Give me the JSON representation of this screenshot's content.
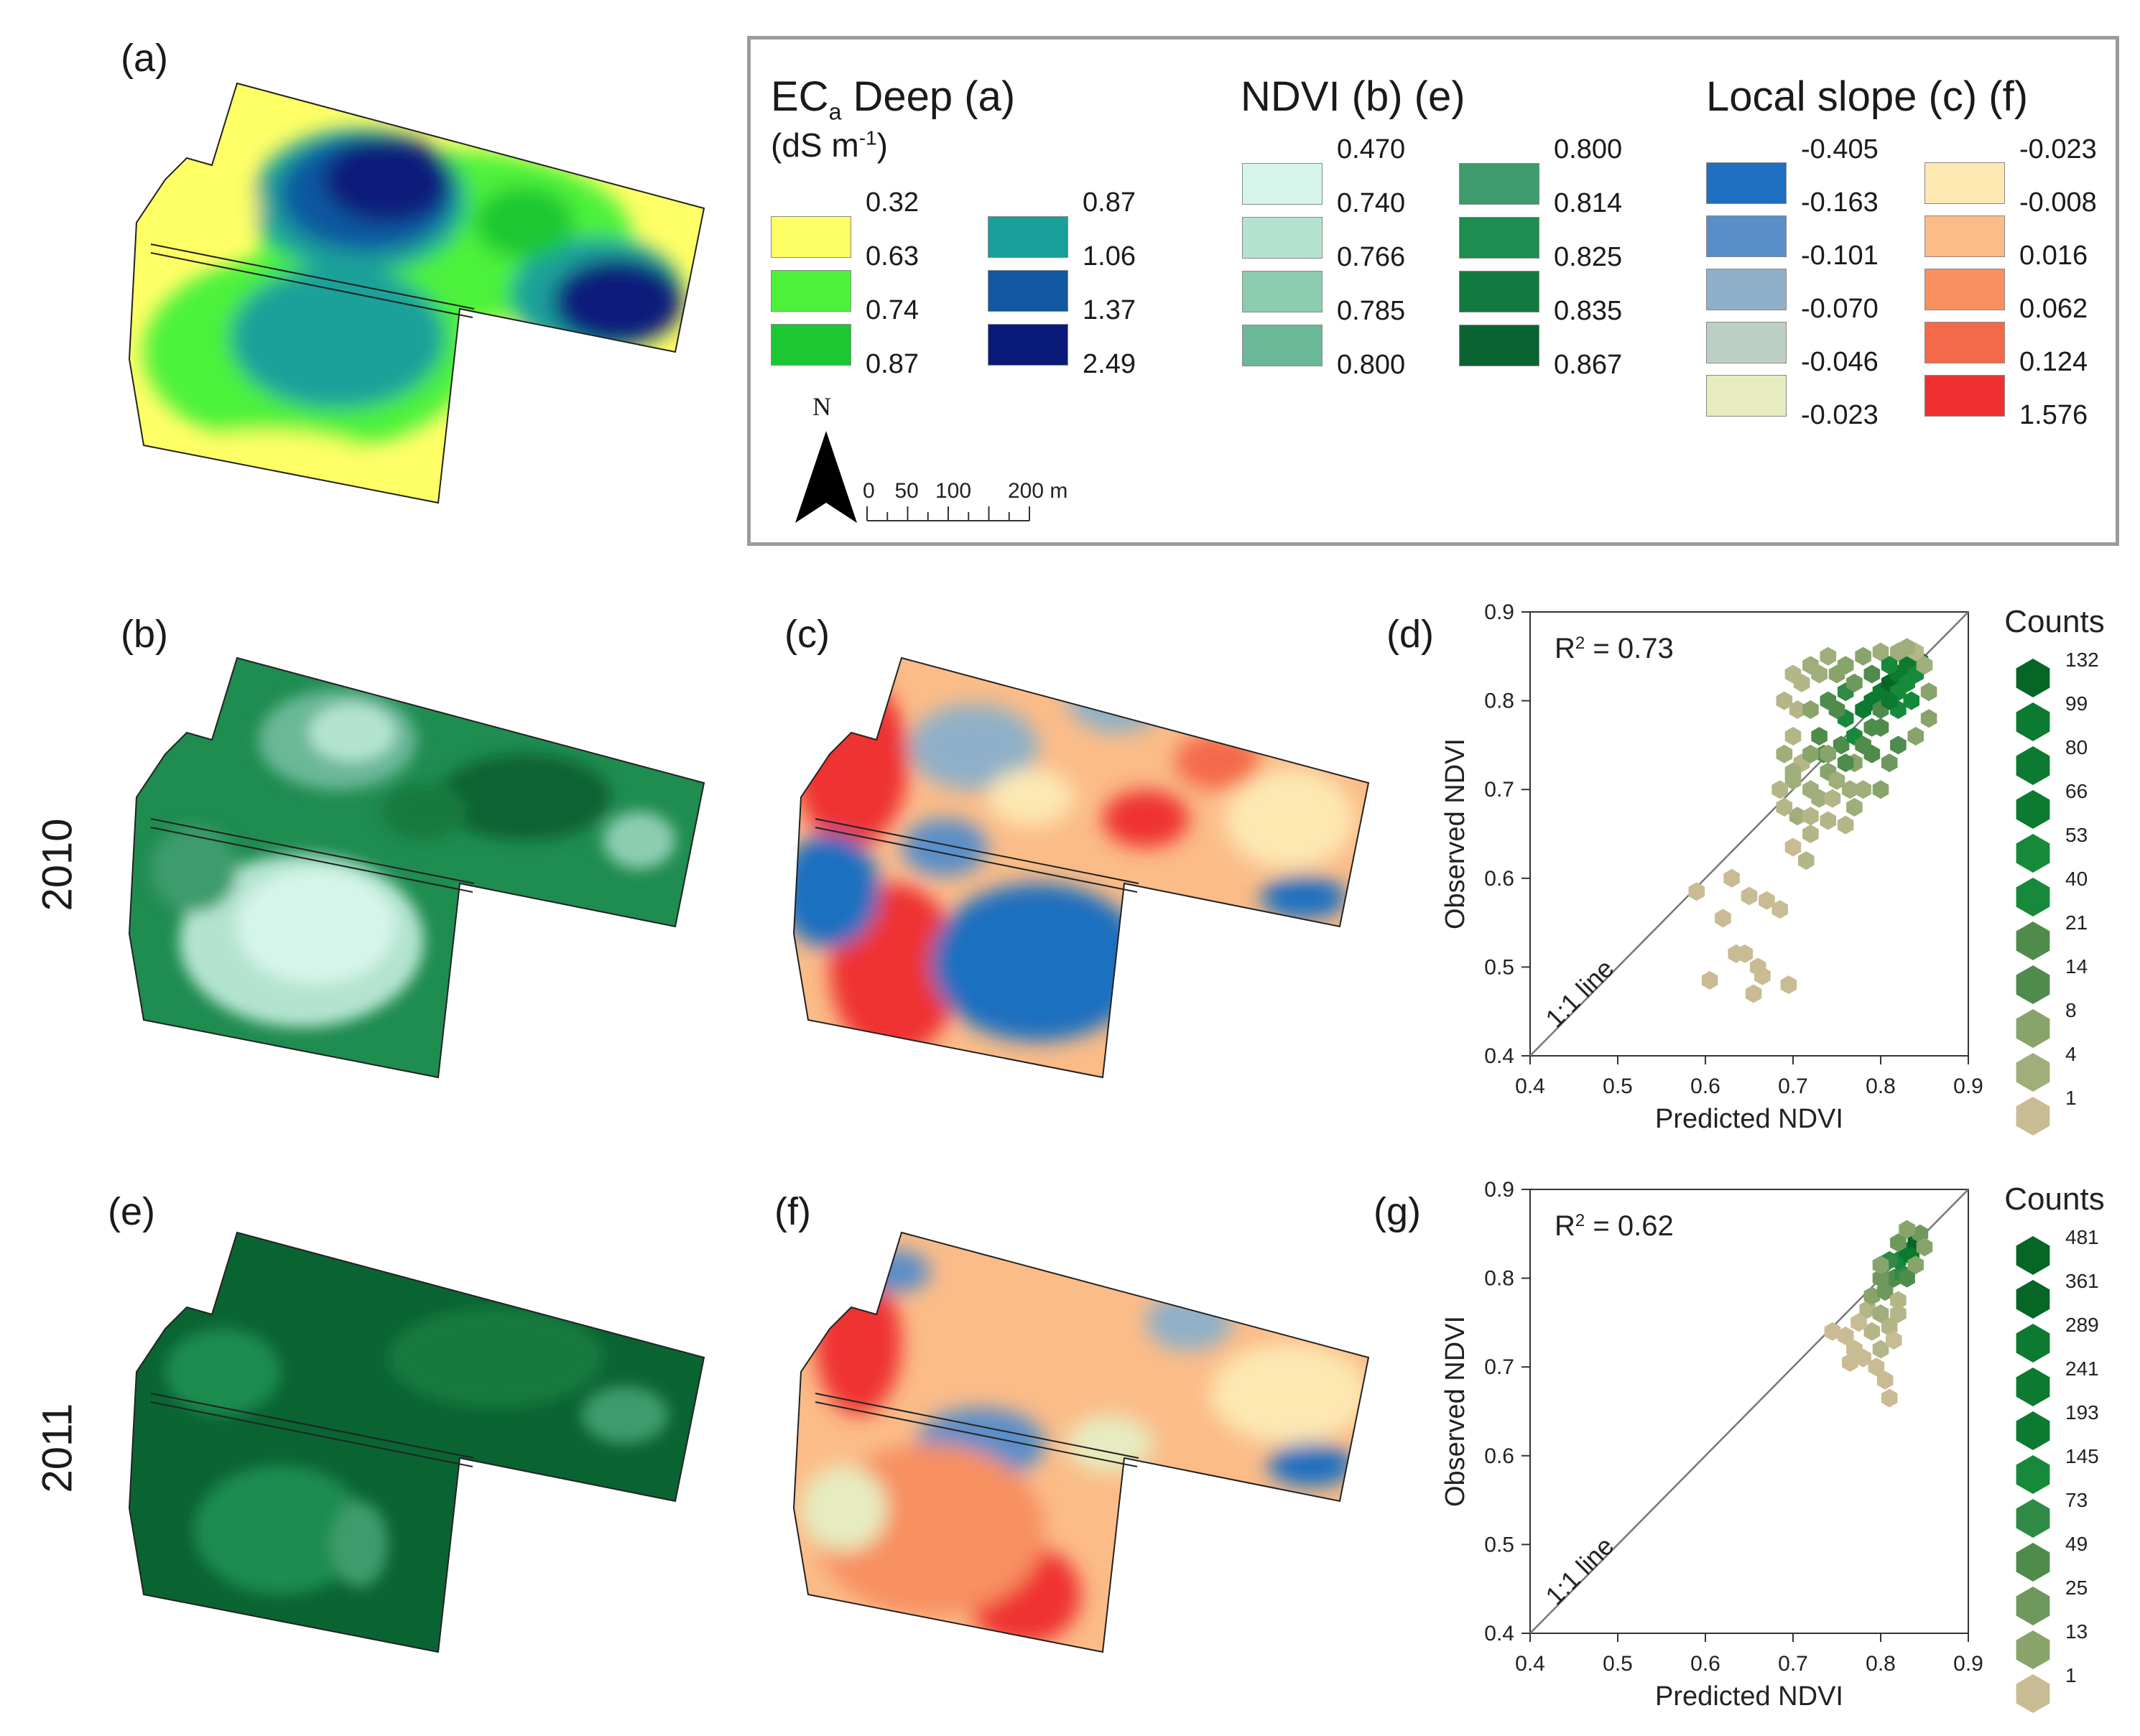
{
  "panels": {
    "a": "(a)",
    "b": "(b)",
    "c": "(c)",
    "d": "(d)",
    "e": "(e)",
    "f": "(f)",
    "g": "(g)"
  },
  "years": {
    "row1": "2010",
    "row2": "2011"
  },
  "legend": {
    "eca": {
      "title_main": "EC",
      "title_sub": "a",
      "title_rest": " Deep (a)",
      "unit_pre": "(dS m",
      "unit_sup": "-1",
      "unit_post": ")",
      "col1": {
        "values": [
          "0.32",
          "0.63",
          "0.74",
          "0.87"
        ],
        "colors": [
          "#ffff66",
          "#4cf23a",
          "#1cc832"
        ]
      },
      "col2": {
        "values": [
          "0.87",
          "1.06",
          "1.37",
          "2.49"
        ],
        "colors": [
          "#1aa09a",
          "#1158a0",
          "#0a1a7a"
        ]
      }
    },
    "ndvi": {
      "title": "NDVI (b) (e)",
      "col1": {
        "values": [
          "0.470",
          "0.740",
          "0.766",
          "0.785",
          "0.800"
        ],
        "colors": [
          "#d6f5ea",
          "#b4e4d0",
          "#8ccdb0",
          "#6ab898"
        ]
      },
      "col2": {
        "values": [
          "0.800",
          "0.814",
          "0.825",
          "0.835",
          "0.867"
        ],
        "colors": [
          "#3e9c6c",
          "#1f8c50",
          "#127a3e",
          "#0a6432"
        ]
      }
    },
    "slope": {
      "title": "Local slope (c) (f)",
      "col1": {
        "values": [
          "-0.405",
          "-0.163",
          "-0.101",
          "-0.070",
          "-0.046",
          "-0.023"
        ],
        "colors": [
          "#1f6fc0",
          "#5a8ec8",
          "#8fb0c8",
          "#bccfc4",
          "#e6ecc0"
        ]
      },
      "col2": {
        "values": [
          "-0.023",
          "-0.008",
          "0.016",
          "0.062",
          "0.124",
          "1.576"
        ],
        "colors": [
          "#fde8b2",
          "#fbbc88",
          "#f89060",
          "#f46a48",
          "#ef3030"
        ]
      }
    },
    "north": "N",
    "scale": {
      "labels": [
        "0",
        "50",
        "100",
        "200 m"
      ],
      "ticks": [
        0,
        25,
        50,
        75,
        100,
        125,
        150,
        175,
        200
      ]
    }
  },
  "chart_data": [
    {
      "type": "scatter",
      "panel": "(d)",
      "xlabel": "Predicted NDVI",
      "ylabel": "Observed NDVI",
      "xlim": [
        0.4,
        0.9
      ],
      "ylim": [
        0.4,
        0.9
      ],
      "xticks": [
        "0.4",
        "0.5",
        "0.6",
        "0.7",
        "0.8",
        "0.9"
      ],
      "yticks": [
        "0.4",
        "0.5",
        "0.6",
        "0.7",
        "0.8",
        "0.9"
      ],
      "annotation_pre": "R",
      "annotation_sup": "2",
      "annotation_post": " = 0.73",
      "line_label": "1:1 line",
      "legend_title": "Counts",
      "legend_counts": [
        "132",
        "99",
        "80",
        "66",
        "53",
        "40",
        "21",
        "14",
        "8",
        "4",
        "1"
      ],
      "points": [
        [
          0.59,
          0.585
        ],
        [
          0.62,
          0.555
        ],
        [
          0.605,
          0.485
        ],
        [
          0.635,
          0.515
        ],
        [
          0.645,
          0.515
        ],
        [
          0.655,
          0.47
        ],
        [
          0.665,
          0.49
        ],
        [
          0.63,
          0.6
        ],
        [
          0.65,
          0.58
        ],
        [
          0.67,
          0.575
        ],
        [
          0.685,
          0.565
        ],
        [
          0.695,
          0.48
        ],
        [
          0.66,
          0.5
        ],
        [
          0.7,
          0.635
        ],
        [
          0.715,
          0.62
        ],
        [
          0.72,
          0.65
        ],
        [
          0.705,
          0.67
        ],
        [
          0.69,
          0.68
        ],
        [
          0.7,
          0.71
        ],
        [
          0.72,
          0.7
        ],
        [
          0.74,
          0.72
        ],
        [
          0.735,
          0.74
        ],
        [
          0.755,
          0.75
        ],
        [
          0.77,
          0.76
        ],
        [
          0.76,
          0.78
        ],
        [
          0.78,
          0.79
        ],
        [
          0.79,
          0.8
        ],
        [
          0.8,
          0.81
        ],
        [
          0.81,
          0.82
        ],
        [
          0.82,
          0.83
        ],
        [
          0.83,
          0.84
        ],
        [
          0.845,
          0.845
        ],
        [
          0.84,
          0.83
        ],
        [
          0.82,
          0.81
        ],
        [
          0.8,
          0.79
        ],
        [
          0.79,
          0.77
        ],
        [
          0.77,
          0.73
        ],
        [
          0.75,
          0.71
        ],
        [
          0.73,
          0.69
        ],
        [
          0.71,
          0.73
        ],
        [
          0.7,
          0.76
        ],
        [
          0.705,
          0.79
        ],
        [
          0.71,
          0.82
        ],
        [
          0.72,
          0.84
        ],
        [
          0.74,
          0.85
        ],
        [
          0.76,
          0.84
        ],
        [
          0.78,
          0.85
        ],
        [
          0.8,
          0.855
        ],
        [
          0.82,
          0.855
        ],
        [
          0.84,
          0.855
        ],
        [
          0.85,
          0.84
        ],
        [
          0.855,
          0.81
        ],
        [
          0.855,
          0.78
        ],
        [
          0.84,
          0.76
        ],
        [
          0.82,
          0.75
        ],
        [
          0.81,
          0.73
        ],
        [
          0.8,
          0.7
        ],
        [
          0.78,
          0.7
        ],
        [
          0.77,
          0.68
        ],
        [
          0.76,
          0.66
        ],
        [
          0.74,
          0.665
        ],
        [
          0.72,
          0.67
        ],
        [
          0.7,
          0.72
        ],
        [
          0.73,
          0.76
        ],
        [
          0.75,
          0.79
        ],
        [
          0.76,
          0.81
        ],
        [
          0.74,
          0.8
        ],
        [
          0.72,
          0.79
        ],
        [
          0.69,
          0.8
        ],
        [
          0.7,
          0.83
        ],
        [
          0.73,
          0.83
        ],
        [
          0.75,
          0.83
        ],
        [
          0.77,
          0.82
        ],
        [
          0.79,
          0.83
        ],
        [
          0.81,
          0.84
        ],
        [
          0.83,
          0.86
        ],
        [
          0.78,
          0.75
        ],
        [
          0.79,
          0.74
        ],
        [
          0.76,
          0.73
        ],
        [
          0.74,
          0.74
        ],
        [
          0.72,
          0.74
        ],
        [
          0.765,
          0.7
        ],
        [
          0.745,
          0.69
        ],
        [
          0.685,
          0.7
        ],
        [
          0.69,
          0.74
        ],
        [
          0.8,
          0.77
        ],
        [
          0.82,
          0.79
        ],
        [
          0.835,
          0.8
        ],
        [
          0.83,
          0.82
        ],
        [
          0.81,
          0.8
        ]
      ],
      "point_counts": [
        1,
        1,
        1,
        1,
        1,
        1,
        1,
        1,
        1,
        1,
        1,
        1,
        1,
        1,
        2,
        2,
        3,
        2,
        3,
        4,
        8,
        14,
        21,
        40,
        53,
        66,
        80,
        99,
        132,
        99,
        80,
        66,
        53,
        40,
        21,
        14,
        8,
        4,
        3,
        2,
        2,
        2,
        2,
        3,
        4,
        8,
        6,
        4,
        3,
        2,
        4,
        6,
        5,
        8,
        14,
        10,
        6,
        4,
        3,
        2,
        2,
        2,
        4,
        14,
        21,
        30,
        14,
        6,
        2,
        2,
        4,
        6,
        10,
        21,
        40,
        4,
        21,
        21,
        14,
        8,
        6,
        3,
        2,
        2,
        3,
        21,
        40,
        53,
        53,
        66
      ]
    },
    {
      "type": "scatter",
      "panel": "(g)",
      "xlabel": "Predicted NDVI",
      "ylabel": "Observed NDVI",
      "xlim": [
        0.4,
        0.9
      ],
      "ylim": [
        0.4,
        0.9
      ],
      "xticks": [
        "0.4",
        "0.5",
        "0.6",
        "0.7",
        "0.8",
        "0.9"
      ],
      "yticks": [
        "0.4",
        "0.5",
        "0.6",
        "0.7",
        "0.8",
        "0.9"
      ],
      "annotation_pre": "R",
      "annotation_sup": "2",
      "annotation_post": " = 0.62",
      "line_label": "1:1 line",
      "legend_title": "Counts",
      "legend_counts": [
        "481",
        "361",
        "289",
        "241",
        "193",
        "145",
        "73",
        "49",
        "25",
        "13",
        "1"
      ],
      "points": [
        [
          0.745,
          0.74
        ],
        [
          0.76,
          0.735
        ],
        [
          0.77,
          0.72
        ],
        [
          0.765,
          0.705
        ],
        [
          0.78,
          0.71
        ],
        [
          0.795,
          0.7
        ],
        [
          0.805,
          0.685
        ],
        [
          0.81,
          0.665
        ],
        [
          0.8,
          0.72
        ],
        [
          0.79,
          0.74
        ],
        [
          0.775,
          0.75
        ],
        [
          0.785,
          0.765
        ],
        [
          0.8,
          0.76
        ],
        [
          0.81,
          0.745
        ],
        [
          0.815,
          0.73
        ],
        [
          0.82,
          0.76
        ],
        [
          0.79,
          0.78
        ],
        [
          0.805,
          0.785
        ],
        [
          0.815,
          0.8
        ],
        [
          0.825,
          0.805
        ],
        [
          0.82,
          0.82
        ],
        [
          0.83,
          0.83
        ],
        [
          0.84,
          0.84
        ],
        [
          0.835,
          0.825
        ],
        [
          0.845,
          0.85
        ],
        [
          0.85,
          0.835
        ],
        [
          0.84,
          0.815
        ],
        [
          0.83,
          0.8
        ],
        [
          0.8,
          0.8
        ],
        [
          0.81,
          0.82
        ],
        [
          0.82,
          0.84
        ],
        [
          0.83,
          0.855
        ],
        [
          0.82,
          0.775
        ],
        [
          0.8,
          0.815
        ]
      ],
      "point_counts": [
        1,
        1,
        1,
        1,
        1,
        1,
        1,
        1,
        2,
        2,
        1,
        3,
        6,
        2,
        1,
        2,
        13,
        25,
        49,
        73,
        145,
        241,
        481,
        193,
        25,
        13,
        13,
        49,
        25,
        73,
        25,
        13,
        2,
        13
      ]
    }
  ]
}
